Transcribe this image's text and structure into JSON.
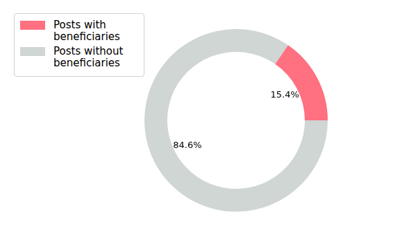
{
  "chart_data": {
    "type": "doughnut",
    "categories": [
      "Posts with beneficiaries",
      "Posts without beneficiaries"
    ],
    "values": [
      15.4,
      84.6
    ],
    "value_labels": [
      "15.4%",
      "84.6%"
    ],
    "colors": [
      "#ff7080",
      "#cfd6d4"
    ],
    "legend": "upper left",
    "data_labels": true
  }
}
